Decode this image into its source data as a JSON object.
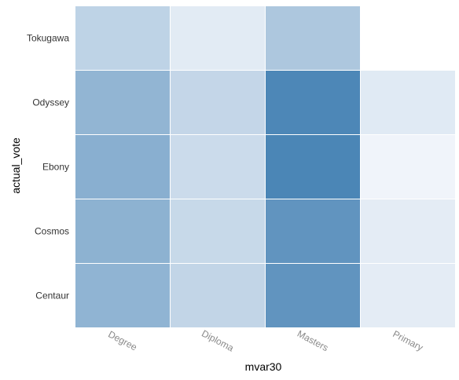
{
  "chart_data": {
    "type": "heatmap",
    "xlabel": "mvar30",
    "ylabel": "actual_vote",
    "x_categories": [
      "Degree",
      "Diploma",
      "Masters",
      "Primary"
    ],
    "y_categories": [
      "Centaur",
      "Cosmos",
      "Ebony",
      "Odyssey",
      "Tokugawa"
    ],
    "cells": [
      {
        "y": "Tokugawa",
        "x": "Degree",
        "value": 0.32
      },
      {
        "y": "Tokugawa",
        "x": "Diploma",
        "value": 0.12
      },
      {
        "y": "Tokugawa",
        "x": "Masters",
        "value": 0.42
      },
      {
        "y": "Tokugawa",
        "x": "Primary",
        "value": null
      },
      {
        "y": "Odyssey",
        "x": "Degree",
        "value": 0.57
      },
      {
        "y": "Odyssey",
        "x": "Diploma",
        "value": 0.29
      },
      {
        "y": "Odyssey",
        "x": "Masters",
        "value": 0.96
      },
      {
        "y": "Odyssey",
        "x": "Primary",
        "value": 0.13
      },
      {
        "y": "Ebony",
        "x": "Degree",
        "value": 0.62
      },
      {
        "y": "Ebony",
        "x": "Diploma",
        "value": 0.25
      },
      {
        "y": "Ebony",
        "x": "Masters",
        "value": 0.97
      },
      {
        "y": "Ebony",
        "x": "Primary",
        "value": 0.04
      },
      {
        "y": "Cosmos",
        "x": "Degree",
        "value": 0.6
      },
      {
        "y": "Cosmos",
        "x": "Diploma",
        "value": 0.27
      },
      {
        "y": "Cosmos",
        "x": "Masters",
        "value": 0.85
      },
      {
        "y": "Cosmos",
        "x": "Primary",
        "value": 0.11
      },
      {
        "y": "Centaur",
        "x": "Degree",
        "value": 0.58
      },
      {
        "y": "Centaur",
        "x": "Diploma",
        "value": 0.3
      },
      {
        "y": "Centaur",
        "x": "Masters",
        "value": 0.85
      },
      {
        "y": "Centaur",
        "x": "Primary",
        "value": 0.11
      }
    ],
    "color_low": "#f7f9fd",
    "color_high": "#4682b4",
    "grid": false,
    "legend": "none"
  }
}
